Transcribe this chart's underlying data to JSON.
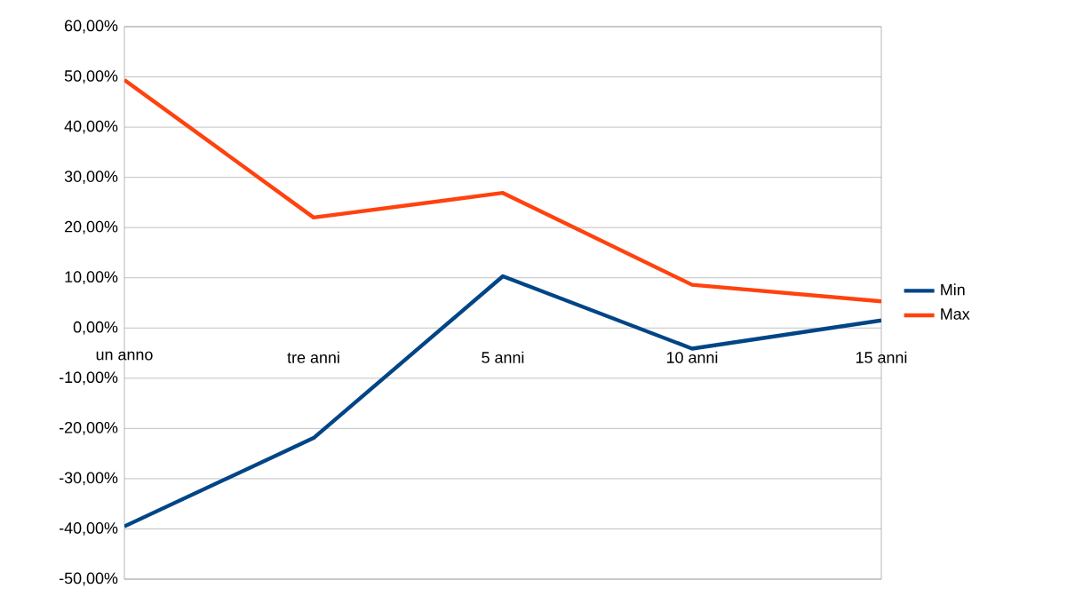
{
  "chart_data": {
    "type": "line",
    "categories": [
      "un anno",
      "tre anni",
      "5 anni",
      "10 anni",
      "15 anni"
    ],
    "series": [
      {
        "name": "Min",
        "color": "#004586",
        "values": [
          -39.5,
          -21.9,
          10.3,
          -4.1,
          1.5
        ]
      },
      {
        "name": "Max",
        "color": "#ff420e",
        "values": [
          49.4,
          22.0,
          26.9,
          8.6,
          5.3
        ]
      }
    ],
    "ylim": [
      -50,
      60
    ],
    "yticks": [
      {
        "value": -50,
        "label": "-50,00%"
      },
      {
        "value": -40,
        "label": "-40,00%"
      },
      {
        "value": -30,
        "label": "-30,00%"
      },
      {
        "value": -20,
        "label": "-20,00%"
      },
      {
        "value": -10,
        "label": "-10,00%"
      },
      {
        "value": 0,
        "label": "0,00%"
      },
      {
        "value": 10,
        "label": "10,00%"
      },
      {
        "value": 20,
        "label": "20,00%"
      },
      {
        "value": 30,
        "label": "30,00%"
      },
      {
        "value": 40,
        "label": "40,00%"
      },
      {
        "value": 50,
        "label": "50,00%"
      },
      {
        "value": 60,
        "label": "60,00%"
      }
    ],
    "grid": "y",
    "legend": "right",
    "marker": "none",
    "line_style": "solid"
  }
}
